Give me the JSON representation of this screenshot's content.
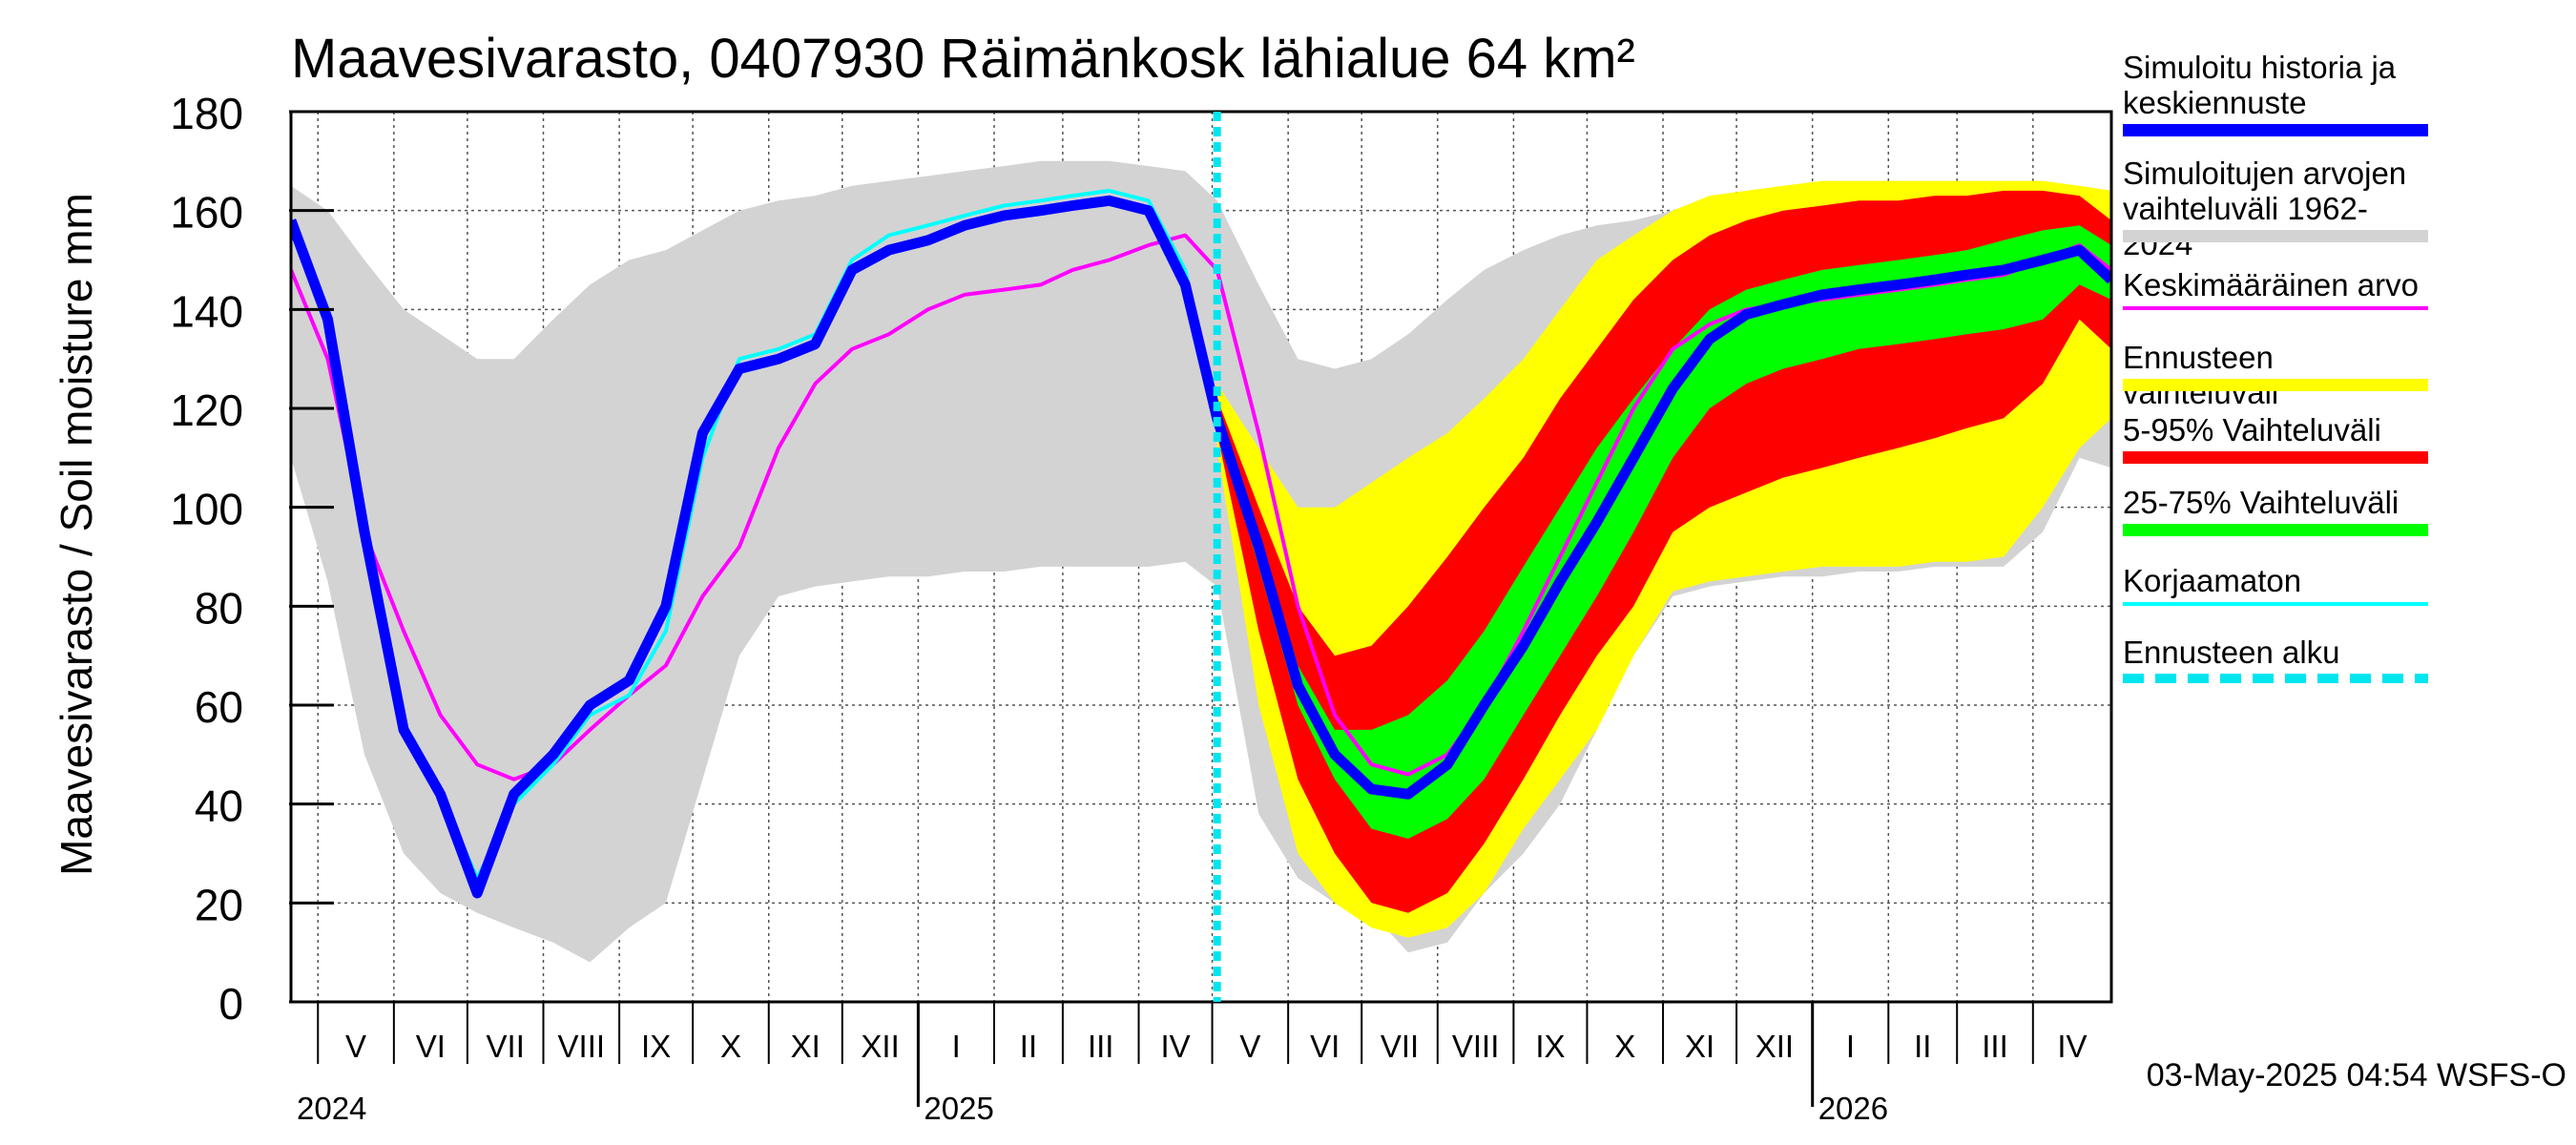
{
  "title": "Maavesivarasto, 0407930 Räimänkosk lähialue 64 km²",
  "ylabel": "Maavesivarasto / Soil moisture   mm",
  "footer": "03-May-2025 04:54 WSFS-O",
  "legend": [
    {
      "label_lines": [
        "Simuloitu historia ja",
        "keskiennuste"
      ],
      "color": "#0000ff",
      "style": "thick"
    },
    {
      "label_lines": [
        "Simuloitujen arvojen",
        "vaihteluväli 1962-2024"
      ],
      "color": "#d3d3d3",
      "style": "thick"
    },
    {
      "label_lines": [
        "Keskimääräinen arvo"
      ],
      "color": "#ff00ff",
      "style": "thin"
    },
    {
      "label_lines": [
        "Ennusteen vaihteluväli"
      ],
      "color": "#ffff00",
      "style": "thick"
    },
    {
      "label_lines": [
        "5-95% Vaihteluväli"
      ],
      "color": "#ff0000",
      "style": "thick"
    },
    {
      "label_lines": [
        "25-75% Vaihteluväli"
      ],
      "color": "#00ff00",
      "style": "thick"
    },
    {
      "label_lines": [
        "Korjaamaton"
      ],
      "color": "#00ffff",
      "style": "thin"
    },
    {
      "label_lines": [
        "Ennusteen alku"
      ],
      "color": "#00e5ee",
      "style": "dashed"
    }
  ],
  "chart_data": {
    "type": "area",
    "title": "Maavesivarasto, 0407930 Räimänkosk lähialue 64 km²",
    "ylabel": "Maavesivarasto / Soil moisture   mm",
    "ylim": [
      0,
      180
    ],
    "yticks": [
      0,
      20,
      40,
      60,
      80,
      100,
      120,
      140,
      160,
      180
    ],
    "grid": true,
    "x_axis": {
      "start": "2024-04-20",
      "end": "2026-05-03",
      "month_labels": [
        {
          "date": "2024-05-01",
          "label": "V"
        },
        {
          "date": "2024-06-01",
          "label": "VI"
        },
        {
          "date": "2024-07-01",
          "label": "VII"
        },
        {
          "date": "2024-08-01",
          "label": "VIII"
        },
        {
          "date": "2024-09-01",
          "label": "IX"
        },
        {
          "date": "2024-10-01",
          "label": "X"
        },
        {
          "date": "2024-11-01",
          "label": "XI"
        },
        {
          "date": "2024-12-01",
          "label": "XII"
        },
        {
          "date": "2025-01-01",
          "label": "I"
        },
        {
          "date": "2025-02-01",
          "label": "II"
        },
        {
          "date": "2025-03-01",
          "label": "III"
        },
        {
          "date": "2025-04-01",
          "label": "IV"
        },
        {
          "date": "2025-05-01",
          "label": "V"
        },
        {
          "date": "2025-06-01",
          "label": "VI"
        },
        {
          "date": "2025-07-01",
          "label": "VII"
        },
        {
          "date": "2025-08-01",
          "label": "VIII"
        },
        {
          "date": "2025-09-01",
          "label": "IX"
        },
        {
          "date": "2025-10-01",
          "label": "X"
        },
        {
          "date": "2025-11-01",
          "label": "XI"
        },
        {
          "date": "2025-12-01",
          "label": "XII"
        },
        {
          "date": "2026-01-01",
          "label": "I"
        },
        {
          "date": "2026-02-01",
          "label": "II"
        },
        {
          "date": "2026-03-01",
          "label": "III"
        },
        {
          "date": "2026-04-01",
          "label": "IV"
        }
      ],
      "year_labels": [
        {
          "date": "2024-04-20",
          "label": "2024"
        },
        {
          "date": "2025-01-01",
          "label": "2025"
        },
        {
          "date": "2026-01-01",
          "label": "2026"
        }
      ]
    },
    "forecast_start": "2025-05-03",
    "series": [
      {
        "name": "Simuloitujen arvojen vaihteluväli 1962-2024",
        "kind": "band",
        "color": "#d3d3d3",
        "x": [
          "2024-04-20",
          "2024-05-05",
          "2024-05-20",
          "2024-06-05",
          "2024-06-20",
          "2024-07-05",
          "2024-07-20",
          "2024-08-05",
          "2024-08-20",
          "2024-09-05",
          "2024-09-20",
          "2024-10-05",
          "2024-10-20",
          "2024-11-05",
          "2024-11-20",
          "2024-12-05",
          "2024-12-20",
          "2025-01-05",
          "2025-01-20",
          "2025-02-05",
          "2025-02-20",
          "2025-03-05",
          "2025-03-20",
          "2025-04-05",
          "2025-04-20",
          "2025-05-03",
          "2025-05-20",
          "2025-06-05",
          "2025-06-20",
          "2025-07-05",
          "2025-07-20",
          "2025-08-05",
          "2025-08-20",
          "2025-09-05",
          "2025-09-20",
          "2025-10-05",
          "2025-10-20",
          "2025-11-05",
          "2025-11-20",
          "2025-12-05",
          "2025-12-20",
          "2026-01-05",
          "2026-01-20",
          "2026-02-05",
          "2026-02-20",
          "2026-03-05",
          "2026-03-20",
          "2026-04-05",
          "2026-04-20",
          "2026-05-03"
        ],
        "low": [
          110,
          85,
          50,
          30,
          22,
          18,
          15,
          12,
          8,
          15,
          20,
          45,
          70,
          82,
          84,
          85,
          86,
          86,
          87,
          87,
          88,
          88,
          88,
          88,
          89,
          84,
          38,
          25,
          20,
          18,
          10,
          12,
          22,
          30,
          40,
          55,
          70,
          82,
          84,
          85,
          86,
          86,
          87,
          87,
          88,
          88,
          88,
          95,
          110,
          108
        ],
        "high": [
          165,
          160,
          150,
          140,
          135,
          130,
          130,
          138,
          145,
          150,
          152,
          156,
          160,
          162,
          163,
          165,
          166,
          167,
          168,
          169,
          170,
          170,
          170,
          169,
          168,
          162,
          145,
          130,
          128,
          130,
          135,
          142,
          148,
          152,
          155,
          157,
          158,
          160,
          161,
          162,
          162,
          163,
          163,
          164,
          164,
          165,
          165,
          165,
          164,
          162
        ]
      },
      {
        "name": "Ennusteen vaihteluväli",
        "kind": "band",
        "color": "#ffff00",
        "x": [
          "2025-05-03",
          "2025-05-20",
          "2025-06-05",
          "2025-06-20",
          "2025-07-05",
          "2025-07-20",
          "2025-08-05",
          "2025-08-20",
          "2025-09-05",
          "2025-09-20",
          "2025-10-05",
          "2025-10-20",
          "2025-11-05",
          "2025-11-20",
          "2025-12-05",
          "2025-12-20",
          "2026-01-05",
          "2026-01-20",
          "2026-02-05",
          "2026-02-20",
          "2026-03-05",
          "2026-03-20",
          "2026-04-05",
          "2026-04-20",
          "2026-05-03"
        ],
        "low": [
          112,
          60,
          30,
          20,
          15,
          13,
          15,
          22,
          35,
          45,
          55,
          70,
          83,
          85,
          86,
          87,
          88,
          88,
          88,
          89,
          89,
          90,
          100,
          112,
          118
        ],
        "high": [
          125,
          112,
          100,
          100,
          105,
          110,
          115,
          122,
          130,
          140,
          150,
          155,
          160,
          163,
          164,
          165,
          166,
          166,
          166,
          166,
          166,
          166,
          166,
          165,
          164
        ]
      },
      {
        "name": "5-95% Vaihteluväli",
        "kind": "band",
        "color": "#ff0000",
        "x": [
          "2025-05-03",
          "2025-05-20",
          "2025-06-05",
          "2025-06-20",
          "2025-07-05",
          "2025-07-20",
          "2025-08-05",
          "2025-08-20",
          "2025-09-05",
          "2025-09-20",
          "2025-10-05",
          "2025-10-20",
          "2025-11-05",
          "2025-11-20",
          "2025-12-05",
          "2025-12-20",
          "2026-01-05",
          "2026-01-20",
          "2026-02-05",
          "2026-02-20",
          "2026-03-05",
          "2026-03-20",
          "2026-04-05",
          "2026-04-20",
          "2026-05-03"
        ],
        "low": [
          115,
          75,
          45,
          30,
          20,
          18,
          22,
          32,
          45,
          58,
          70,
          80,
          95,
          100,
          103,
          106,
          108,
          110,
          112,
          114,
          116,
          118,
          125,
          138,
          132
        ],
        "high": [
          122,
          100,
          80,
          70,
          72,
          80,
          90,
          100,
          110,
          122,
          132,
          142,
          150,
          155,
          158,
          160,
          161,
          162,
          162,
          163,
          163,
          164,
          164,
          163,
          158
        ]
      },
      {
        "name": "25-75% Vaihteluväli",
        "kind": "band",
        "color": "#00ff00",
        "x": [
          "2025-05-03",
          "2025-05-20",
          "2025-06-05",
          "2025-06-20",
          "2025-07-05",
          "2025-07-20",
          "2025-08-05",
          "2025-08-20",
          "2025-09-05",
          "2025-09-20",
          "2025-10-05",
          "2025-10-20",
          "2025-11-05",
          "2025-11-20",
          "2025-12-05",
          "2025-12-20",
          "2026-01-05",
          "2026-01-20",
          "2026-02-05",
          "2026-02-20",
          "2026-03-05",
          "2026-03-20",
          "2026-04-05",
          "2026-04-20",
          "2026-05-03"
        ],
        "low": [
          117,
          88,
          60,
          45,
          35,
          33,
          37,
          45,
          58,
          70,
          82,
          95,
          110,
          120,
          125,
          128,
          130,
          132,
          133,
          134,
          135,
          136,
          138,
          145,
          142
        ],
        "high": [
          119,
          95,
          68,
          55,
          55,
          58,
          65,
          75,
          88,
          100,
          112,
          122,
          132,
          140,
          144,
          146,
          148,
          149,
          150,
          151,
          152,
          154,
          156,
          157,
          153
        ]
      },
      {
        "name": "Keskimääräinen arvo",
        "kind": "line",
        "color": "#ff00ff",
        "x": [
          "2024-04-20",
          "2024-05-05",
          "2024-05-20",
          "2024-06-05",
          "2024-06-20",
          "2024-07-05",
          "2024-07-20",
          "2024-08-05",
          "2024-08-20",
          "2024-09-05",
          "2024-09-20",
          "2024-10-05",
          "2024-10-20",
          "2024-11-05",
          "2024-11-20",
          "2024-12-05",
          "2024-12-20",
          "2025-01-05",
          "2025-01-20",
          "2025-02-05",
          "2025-02-20",
          "2025-03-05",
          "2025-03-20",
          "2025-04-05",
          "2025-04-20",
          "2025-05-03",
          "2025-05-20",
          "2025-06-05",
          "2025-06-20",
          "2025-07-05",
          "2025-07-20",
          "2025-08-05",
          "2025-08-20",
          "2025-09-05",
          "2025-09-20",
          "2025-10-05",
          "2025-10-20",
          "2025-11-05",
          "2025-11-20",
          "2025-12-05",
          "2025-12-20",
          "2026-01-05",
          "2026-01-20",
          "2026-02-05",
          "2026-02-20",
          "2026-03-05",
          "2026-03-20",
          "2026-04-05",
          "2026-04-20",
          "2026-05-03"
        ],
        "y": [
          148,
          130,
          95,
          75,
          58,
          48,
          45,
          48,
          55,
          62,
          68,
          82,
          92,
          112,
          125,
          132,
          135,
          140,
          143,
          144,
          145,
          148,
          150,
          153,
          155,
          148,
          115,
          80,
          58,
          48,
          46,
          50,
          60,
          75,
          90,
          105,
          120,
          132,
          137,
          140,
          141,
          142,
          143,
          144,
          145,
          146,
          147,
          150,
          153,
          148
        ]
      },
      {
        "name": "Korjaamaton",
        "kind": "line",
        "color": "#00ffff",
        "x": [
          "2024-04-20",
          "2024-05-05",
          "2024-05-20",
          "2024-06-05",
          "2024-06-20",
          "2024-07-05",
          "2024-07-20",
          "2024-08-05",
          "2024-08-20",
          "2024-09-05",
          "2024-09-20",
          "2024-10-05",
          "2024-10-20",
          "2024-11-05",
          "2024-11-20",
          "2024-12-05",
          "2024-12-20",
          "2025-01-05",
          "2025-01-20",
          "2025-02-05",
          "2025-02-20",
          "2025-03-05",
          "2025-03-20",
          "2025-04-05",
          "2025-04-20",
          "2025-05-03"
        ],
        "y": [
          158,
          140,
          95,
          55,
          42,
          25,
          40,
          48,
          58,
          62,
          75,
          110,
          130,
          132,
          135,
          150,
          155,
          157,
          159,
          161,
          162,
          163,
          164,
          162,
          148,
          118
        ]
      },
      {
        "name": "Simuloitu historia ja keskiennuste",
        "kind": "line",
        "color": "#0000ff",
        "x": [
          "2024-04-20",
          "2024-05-05",
          "2024-05-20",
          "2024-06-05",
          "2024-06-20",
          "2024-07-05",
          "2024-07-20",
          "2024-08-05",
          "2024-08-20",
          "2024-09-05",
          "2024-09-20",
          "2024-10-05",
          "2024-10-20",
          "2024-11-05",
          "2024-11-20",
          "2024-12-05",
          "2024-12-20",
          "2025-01-05",
          "2025-01-20",
          "2025-02-05",
          "2025-02-20",
          "2025-03-05",
          "2025-03-20",
          "2025-04-05",
          "2025-04-20",
          "2025-05-03",
          "2025-05-20",
          "2025-06-05",
          "2025-06-20",
          "2025-07-05",
          "2025-07-20",
          "2025-08-05",
          "2025-08-20",
          "2025-09-05",
          "2025-09-20",
          "2025-10-05",
          "2025-10-20",
          "2025-11-05",
          "2025-11-20",
          "2025-12-05",
          "2025-12-20",
          "2026-01-05",
          "2026-01-20",
          "2026-02-05",
          "2026-02-20",
          "2026-03-05",
          "2026-03-20",
          "2026-04-05",
          "2026-04-20",
          "2026-05-03"
        ],
        "y": [
          158,
          138,
          95,
          55,
          42,
          22,
          42,
          50,
          60,
          65,
          80,
          115,
          128,
          130,
          133,
          148,
          152,
          154,
          157,
          159,
          160,
          161,
          162,
          160,
          145,
          118,
          92,
          64,
          50,
          43,
          42,
          48,
          60,
          72,
          85,
          97,
          110,
          124,
          134,
          139,
          141,
          143,
          144,
          145,
          146,
          147,
          148,
          150,
          152,
          146
        ]
      }
    ]
  }
}
